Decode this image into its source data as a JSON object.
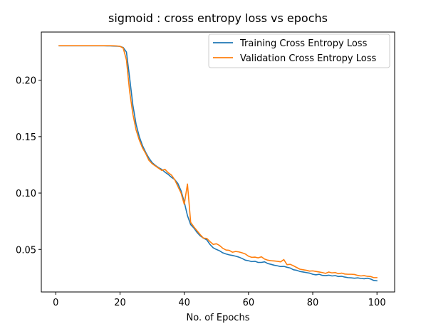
{
  "chart_data": {
    "type": "line",
    "title": "sigmoid : cross entropy loss vs epochs",
    "xlabel": "No. of Epochs",
    "ylabel": "",
    "xlim": [
      -4.5,
      105.5
    ],
    "ylim": [
      0.0123,
      0.2427
    ],
    "xticks": [
      0,
      20,
      40,
      60,
      80,
      100
    ],
    "yticks": [
      0.05,
      0.1,
      0.15,
      0.2
    ],
    "ytick_labels": [
      "0.05",
      "0.10",
      "0.15",
      "0.20"
    ],
    "grid": false,
    "legend_position": "top-right",
    "series": [
      {
        "name": "Training Cross Entropy Loss",
        "color": "#1f77b4",
        "x": [
          1,
          2,
          3,
          4,
          5,
          6,
          7,
          8,
          9,
          10,
          11,
          12,
          13,
          14,
          15,
          16,
          17,
          18,
          19,
          20,
          21,
          22,
          23,
          24,
          25,
          26,
          27,
          28,
          29,
          30,
          31,
          32,
          33,
          34,
          35,
          36,
          37,
          38,
          39,
          40,
          41,
          42,
          43,
          44,
          45,
          46,
          47,
          48,
          49,
          50,
          51,
          52,
          53,
          54,
          55,
          56,
          57,
          58,
          59,
          60,
          61,
          62,
          63,
          64,
          65,
          66,
          67,
          68,
          69,
          70,
          71,
          72,
          73,
          74,
          75,
          76,
          77,
          78,
          79,
          80,
          81,
          82,
          83,
          84,
          85,
          86,
          87,
          88,
          89,
          90,
          91,
          92,
          93,
          94,
          95,
          96,
          97,
          98,
          99,
          100
        ],
        "values": [
          0.2305,
          0.2305,
          0.2305,
          0.2305,
          0.2305,
          0.2305,
          0.2305,
          0.2305,
          0.2305,
          0.2305,
          0.2305,
          0.2305,
          0.2305,
          0.2305,
          0.2305,
          0.2304,
          0.2304,
          0.2303,
          0.2302,
          0.23,
          0.229,
          0.225,
          0.202,
          0.178,
          0.161,
          0.15,
          0.142,
          0.136,
          0.131,
          0.127,
          0.1245,
          0.1225,
          0.121,
          0.1185,
          0.1165,
          0.114,
          0.112,
          0.1085,
          0.102,
          0.092,
          0.08,
          0.072,
          0.069,
          0.065,
          0.062,
          0.06,
          0.0585,
          0.0545,
          0.0515,
          0.05,
          0.0488,
          0.047,
          0.046,
          0.0452,
          0.0447,
          0.044,
          0.0432,
          0.042,
          0.0405,
          0.04,
          0.0392,
          0.0395,
          0.0385,
          0.0385,
          0.039,
          0.0375,
          0.0368,
          0.036,
          0.0355,
          0.0348,
          0.035,
          0.0342,
          0.0335,
          0.032,
          0.0315,
          0.0305,
          0.03,
          0.0295,
          0.029,
          0.028,
          0.0275,
          0.028,
          0.027,
          0.0268,
          0.0272,
          0.0265,
          0.0268,
          0.026,
          0.0262,
          0.0255,
          0.025,
          0.0248,
          0.0245,
          0.0248,
          0.0243,
          0.024,
          0.0245,
          0.0238,
          0.0225,
          0.0222
        ]
      },
      {
        "name": "Validation Cross Entropy Loss",
        "color": "#ff7f0e",
        "x": [
          1,
          2,
          3,
          4,
          5,
          6,
          7,
          8,
          9,
          10,
          11,
          12,
          13,
          14,
          15,
          16,
          17,
          18,
          19,
          20,
          21,
          22,
          23,
          24,
          25,
          26,
          27,
          28,
          29,
          30,
          31,
          32,
          33,
          34,
          35,
          36,
          37,
          38,
          39,
          40,
          41,
          42,
          43,
          44,
          45,
          46,
          47,
          48,
          49,
          50,
          51,
          52,
          53,
          54,
          55,
          56,
          57,
          58,
          59,
          60,
          61,
          62,
          63,
          64,
          65,
          66,
          67,
          68,
          69,
          70,
          71,
          72,
          73,
          74,
          75,
          76,
          77,
          78,
          79,
          80,
          81,
          82,
          83,
          84,
          85,
          86,
          87,
          88,
          89,
          90,
          91,
          92,
          93,
          94,
          95,
          96,
          97,
          98,
          99,
          100
        ],
        "values": [
          0.2306,
          0.2306,
          0.2306,
          0.2306,
          0.2306,
          0.2306,
          0.2306,
          0.2306,
          0.2306,
          0.2306,
          0.2306,
          0.2306,
          0.2306,
          0.2306,
          0.2306,
          0.2306,
          0.2306,
          0.2305,
          0.2304,
          0.23,
          0.2285,
          0.218,
          0.19,
          0.17,
          0.156,
          0.147,
          0.14,
          0.135,
          0.129,
          0.126,
          0.124,
          0.122,
          0.12,
          0.121,
          0.118,
          0.116,
          0.112,
          0.106,
          0.1,
          0.09,
          0.108,
          0.074,
          0.07,
          0.0665,
          0.063,
          0.06,
          0.0598,
          0.057,
          0.0545,
          0.055,
          0.0535,
          0.051,
          0.0495,
          0.0492,
          0.0475,
          0.0482,
          0.0478,
          0.047,
          0.046,
          0.044,
          0.043,
          0.0432,
          0.0425,
          0.0435,
          0.0415,
          0.0405,
          0.04,
          0.0398,
          0.0395,
          0.039,
          0.041,
          0.0365,
          0.0368,
          0.0355,
          0.034,
          0.0325,
          0.032,
          0.0315,
          0.0308,
          0.031,
          0.0305,
          0.03,
          0.0295,
          0.0288,
          0.03,
          0.0292,
          0.0295,
          0.0285,
          0.029,
          0.0282,
          0.028,
          0.028,
          0.0278,
          0.027,
          0.0265,
          0.0268,
          0.0262,
          0.026,
          0.025,
          0.025
        ]
      }
    ]
  }
}
